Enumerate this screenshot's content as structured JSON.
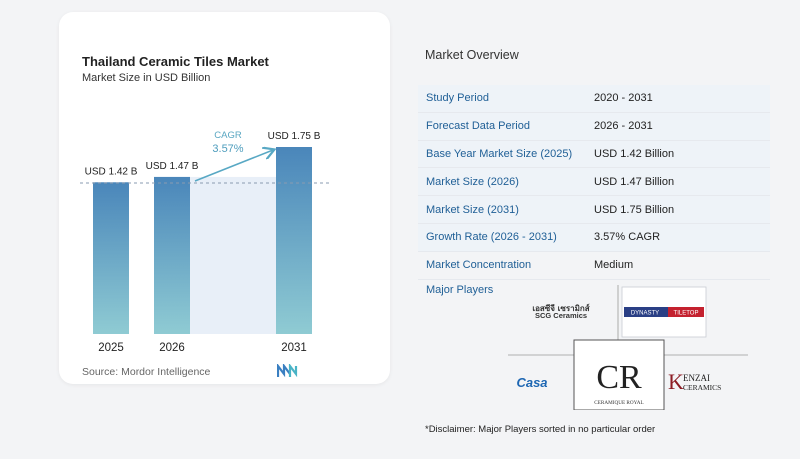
{
  "chart_data": {
    "type": "bar",
    "title": "Thailand Ceramic Tiles Market",
    "subtitle": "Market Size in USD Billion",
    "categories": [
      "2025",
      "2026",
      "2031"
    ],
    "values": [
      1.42,
      1.47,
      1.75
    ],
    "value_labels": [
      "USD 1.42 B",
      "USD 1.47 B",
      "USD 1.75 B"
    ],
    "ylim": [
      0,
      1.75
    ],
    "cagr_label": "CAGR",
    "cagr_value": "3.57%",
    "colors": {
      "bar_top": "#4a86ba",
      "bar_bottom": "#8fcbd3",
      "band": "#e8eff8",
      "arrow": "#58a8c4"
    }
  },
  "source": "Source:  Mordor Intelligence",
  "overview": {
    "title": "Market Overview",
    "rows": [
      {
        "label": "Study Period",
        "value": "2020 - 2031"
      },
      {
        "label": "Forecast Data Period",
        "value": "2026 - 2031"
      },
      {
        "label": "Base Year Market Size (2025)",
        "value": "USD 1.42 Billion"
      },
      {
        "label": "Market Size (2026)",
        "value": "USD 1.47 Billion"
      },
      {
        "label": "Market Size (2031)",
        "value": "USD 1.75 Billion"
      },
      {
        "label": "Growth Rate (2026 - 2031)",
        "value": "3.57% CAGR"
      },
      {
        "label": "Market Concentration",
        "value": "Medium"
      }
    ],
    "players_title": "Major Players",
    "players": {
      "scg_thai": "เอสซีจี เซรามิกส์",
      "scg": "SCG Ceramics",
      "dynasty": "DYNASTY",
      "tiletop": "TILETOP",
      "casa": "Casa",
      "cr": "CR",
      "ceramique": "CERAMIQUE ROYAL",
      "kenzai_k": "K",
      "kenzai": "ENZAI",
      "ceramics": "CERAMICS"
    },
    "disclaimer": "*Disclaimer: Major Players sorted in no particular order"
  }
}
